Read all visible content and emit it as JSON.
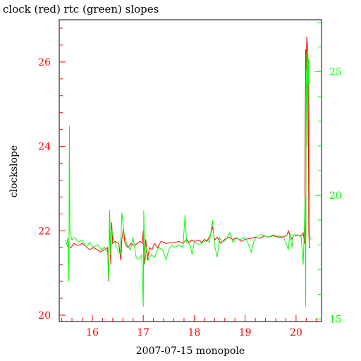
{
  "chart_data": {
    "type": "line",
    "title": "clock (red) rtc (green) slopes",
    "xlabel": "2007-07-15 monopole",
    "ylabel": "clockslope",
    "xlim": [
      15.35,
      20.5
    ],
    "ylim_left": [
      19.85,
      27.0
    ],
    "ylim_right": [
      14.9,
      27.1
    ],
    "x_ticks": [
      16,
      17,
      18,
      19,
      20
    ],
    "y_ticks_left": [
      20,
      22,
      24,
      26
    ],
    "y_ticks_right": [
      15,
      20,
      25
    ],
    "colors": {
      "clock": "#ff0000",
      "rtc": "#00ff00",
      "axes": "#000000"
    },
    "grid": false,
    "series": [
      {
        "name": "clock",
        "axis": "left",
        "color": "#ff0000",
        "points": [
          [
            15.5,
            21.65
          ],
          [
            15.58,
            21.6
          ],
          [
            15.64,
            21.7
          ],
          [
            15.72,
            21.65
          ],
          [
            15.8,
            21.7
          ],
          [
            15.9,
            21.6
          ],
          [
            15.95,
            21.55
          ],
          [
            16.02,
            21.6
          ],
          [
            16.1,
            21.55
          ],
          [
            16.16,
            21.5
          ],
          [
            16.23,
            21.55
          ],
          [
            16.3,
            21.6
          ],
          [
            16.32,
            20.8
          ],
          [
            16.34,
            22.4
          ],
          [
            16.36,
            21.2
          ],
          [
            16.38,
            22.2
          ],
          [
            16.4,
            21.7
          ],
          [
            16.45,
            21.75
          ],
          [
            16.52,
            21.7
          ],
          [
            16.56,
            21.3
          ],
          [
            16.58,
            21.8
          ],
          [
            16.61,
            22.05
          ],
          [
            16.64,
            21.7
          ],
          [
            16.7,
            21.6
          ],
          [
            16.76,
            21.7
          ],
          [
            16.82,
            21.65
          ],
          [
            16.88,
            21.7
          ],
          [
            16.94,
            21.75
          ],
          [
            16.98,
            21.7
          ],
          [
            17.0,
            22.0
          ],
          [
            17.01,
            21.2
          ],
          [
            17.03,
            21.5
          ],
          [
            17.05,
            21.8
          ],
          [
            17.08,
            21.3
          ],
          [
            17.12,
            21.6
          ],
          [
            17.17,
            21.55
          ],
          [
            17.22,
            21.7
          ],
          [
            17.28,
            21.6
          ],
          [
            17.35,
            21.75
          ],
          [
            17.45,
            21.7
          ],
          [
            17.55,
            21.72
          ],
          [
            17.62,
            21.72
          ],
          [
            17.7,
            21.75
          ],
          [
            17.78,
            21.7
          ],
          [
            17.85,
            21.8
          ],
          [
            17.9,
            21.72
          ],
          [
            17.95,
            21.78
          ],
          [
            18.0,
            21.75
          ],
          [
            18.1,
            21.78
          ],
          [
            18.15,
            21.72
          ],
          [
            18.2,
            21.8
          ],
          [
            18.25,
            21.75
          ],
          [
            18.32,
            21.9
          ],
          [
            18.36,
            22.1
          ],
          [
            18.4,
            21.78
          ],
          [
            18.45,
            21.85
          ],
          [
            18.52,
            21.7
          ],
          [
            18.6,
            21.8
          ],
          [
            18.68,
            21.85
          ],
          [
            18.75,
            21.8
          ],
          [
            18.85,
            21.82
          ],
          [
            18.92,
            21.75
          ],
          [
            19.0,
            21.8
          ],
          [
            19.1,
            21.82
          ],
          [
            19.2,
            21.85
          ],
          [
            19.28,
            21.82
          ],
          [
            19.38,
            21.88
          ],
          [
            19.45,
            21.85
          ],
          [
            19.55,
            21.88
          ],
          [
            19.65,
            21.85
          ],
          [
            19.75,
            21.85
          ],
          [
            19.82,
            21.9
          ],
          [
            19.85,
            22.0
          ],
          [
            19.88,
            21.88
          ],
          [
            19.92,
            21.8
          ],
          [
            19.96,
            21.9
          ],
          [
            20.0,
            21.88
          ],
          [
            20.05,
            21.9
          ],
          [
            20.1,
            21.88
          ],
          [
            20.14,
            21.95
          ],
          [
            20.17,
            21.7
          ],
          [
            20.18,
            24.5
          ],
          [
            20.19,
            26.3
          ],
          [
            20.2,
            25.8
          ],
          [
            20.21,
            26.6
          ],
          [
            20.22,
            26.0
          ],
          [
            20.23,
            26.3
          ],
          [
            20.24,
            25.3
          ],
          [
            20.25,
            22.0
          ],
          [
            20.26,
            21.6
          ],
          [
            20.28,
            21.6
          ]
        ]
      },
      {
        "name": "rtc",
        "axis": "right",
        "color": "#00ff00",
        "points": [
          [
            15.47,
            18.2
          ],
          [
            15.5,
            18.0
          ],
          [
            15.52,
            18.3
          ],
          [
            15.54,
            16.5
          ],
          [
            15.55,
            22.8
          ],
          [
            15.56,
            18.5
          ],
          [
            15.6,
            18.2
          ],
          [
            15.66,
            18.3
          ],
          [
            15.72,
            18.1
          ],
          [
            15.8,
            18.2
          ],
          [
            15.88,
            17.9
          ],
          [
            15.95,
            18.1
          ],
          [
            16.02,
            17.9
          ],
          [
            16.1,
            18.0
          ],
          [
            16.18,
            17.8
          ],
          [
            16.24,
            17.9
          ],
          [
            16.3,
            17.7
          ],
          [
            16.32,
            16.6
          ],
          [
            16.34,
            19.4
          ],
          [
            16.36,
            17.6
          ],
          [
            16.38,
            18.6
          ],
          [
            16.42,
            18.2
          ],
          [
            16.48,
            17.9
          ],
          [
            16.55,
            17.6
          ],
          [
            16.58,
            19.3
          ],
          [
            16.62,
            18.5
          ],
          [
            16.68,
            18.0
          ],
          [
            16.75,
            17.8
          ],
          [
            16.8,
            18.3
          ],
          [
            16.86,
            17.5
          ],
          [
            16.92,
            17.4
          ],
          [
            16.97,
            17.6
          ],
          [
            17.0,
            15.5
          ],
          [
            17.01,
            19.4
          ],
          [
            17.03,
            17.2
          ],
          [
            17.06,
            17.9
          ],
          [
            17.1,
            17.4
          ],
          [
            17.16,
            17.6
          ],
          [
            17.22,
            17.5
          ],
          [
            17.3,
            17.9
          ],
          [
            17.38,
            17.8
          ],
          [
            17.45,
            17.4
          ],
          [
            17.5,
            17.8
          ],
          [
            17.56,
            18.0
          ],
          [
            17.62,
            17.9
          ],
          [
            17.7,
            18.0
          ],
          [
            17.78,
            17.9
          ],
          [
            17.82,
            19.2
          ],
          [
            17.85,
            18.1
          ],
          [
            17.92,
            18.0
          ],
          [
            17.96,
            17.6
          ],
          [
            18.0,
            18.1
          ],
          [
            18.1,
            18.0
          ],
          [
            18.18,
            18.1
          ],
          [
            18.24,
            18.2
          ],
          [
            18.3,
            18.1
          ],
          [
            18.36,
            19.0
          ],
          [
            18.4,
            18.0
          ],
          [
            18.45,
            17.5
          ],
          [
            18.5,
            18.3
          ],
          [
            18.55,
            18.1
          ],
          [
            18.62,
            18.2
          ],
          [
            18.7,
            18.5
          ],
          [
            18.76,
            18.1
          ],
          [
            18.82,
            18.3
          ],
          [
            18.9,
            18.2
          ],
          [
            18.98,
            18.3
          ],
          [
            19.05,
            18.1
          ],
          [
            19.12,
            17.7
          ],
          [
            19.18,
            18.2
          ],
          [
            19.26,
            18.4
          ],
          [
            19.35,
            18.4
          ],
          [
            19.45,
            18.3
          ],
          [
            19.55,
            18.4
          ],
          [
            19.65,
            18.35
          ],
          [
            19.75,
            18.35
          ],
          [
            19.85,
            17.8
          ],
          [
            19.88,
            18.5
          ],
          [
            19.92,
            17.9
          ],
          [
            19.95,
            18.4
          ],
          [
            20.05,
            18.4
          ],
          [
            20.1,
            18.3
          ],
          [
            20.14,
            17.2
          ],
          [
            20.16,
            18.4
          ],
          [
            20.18,
            20.0
          ],
          [
            20.19,
            15.5
          ],
          [
            20.2,
            23.5
          ],
          [
            20.21,
            25.8
          ],
          [
            20.22,
            22.0
          ],
          [
            20.23,
            26.2
          ],
          [
            20.24,
            24.5
          ],
          [
            20.25,
            25.5
          ],
          [
            20.26,
            22.0
          ],
          [
            20.27,
            18.4
          ],
          [
            20.28,
            18.2
          ]
        ]
      }
    ]
  }
}
